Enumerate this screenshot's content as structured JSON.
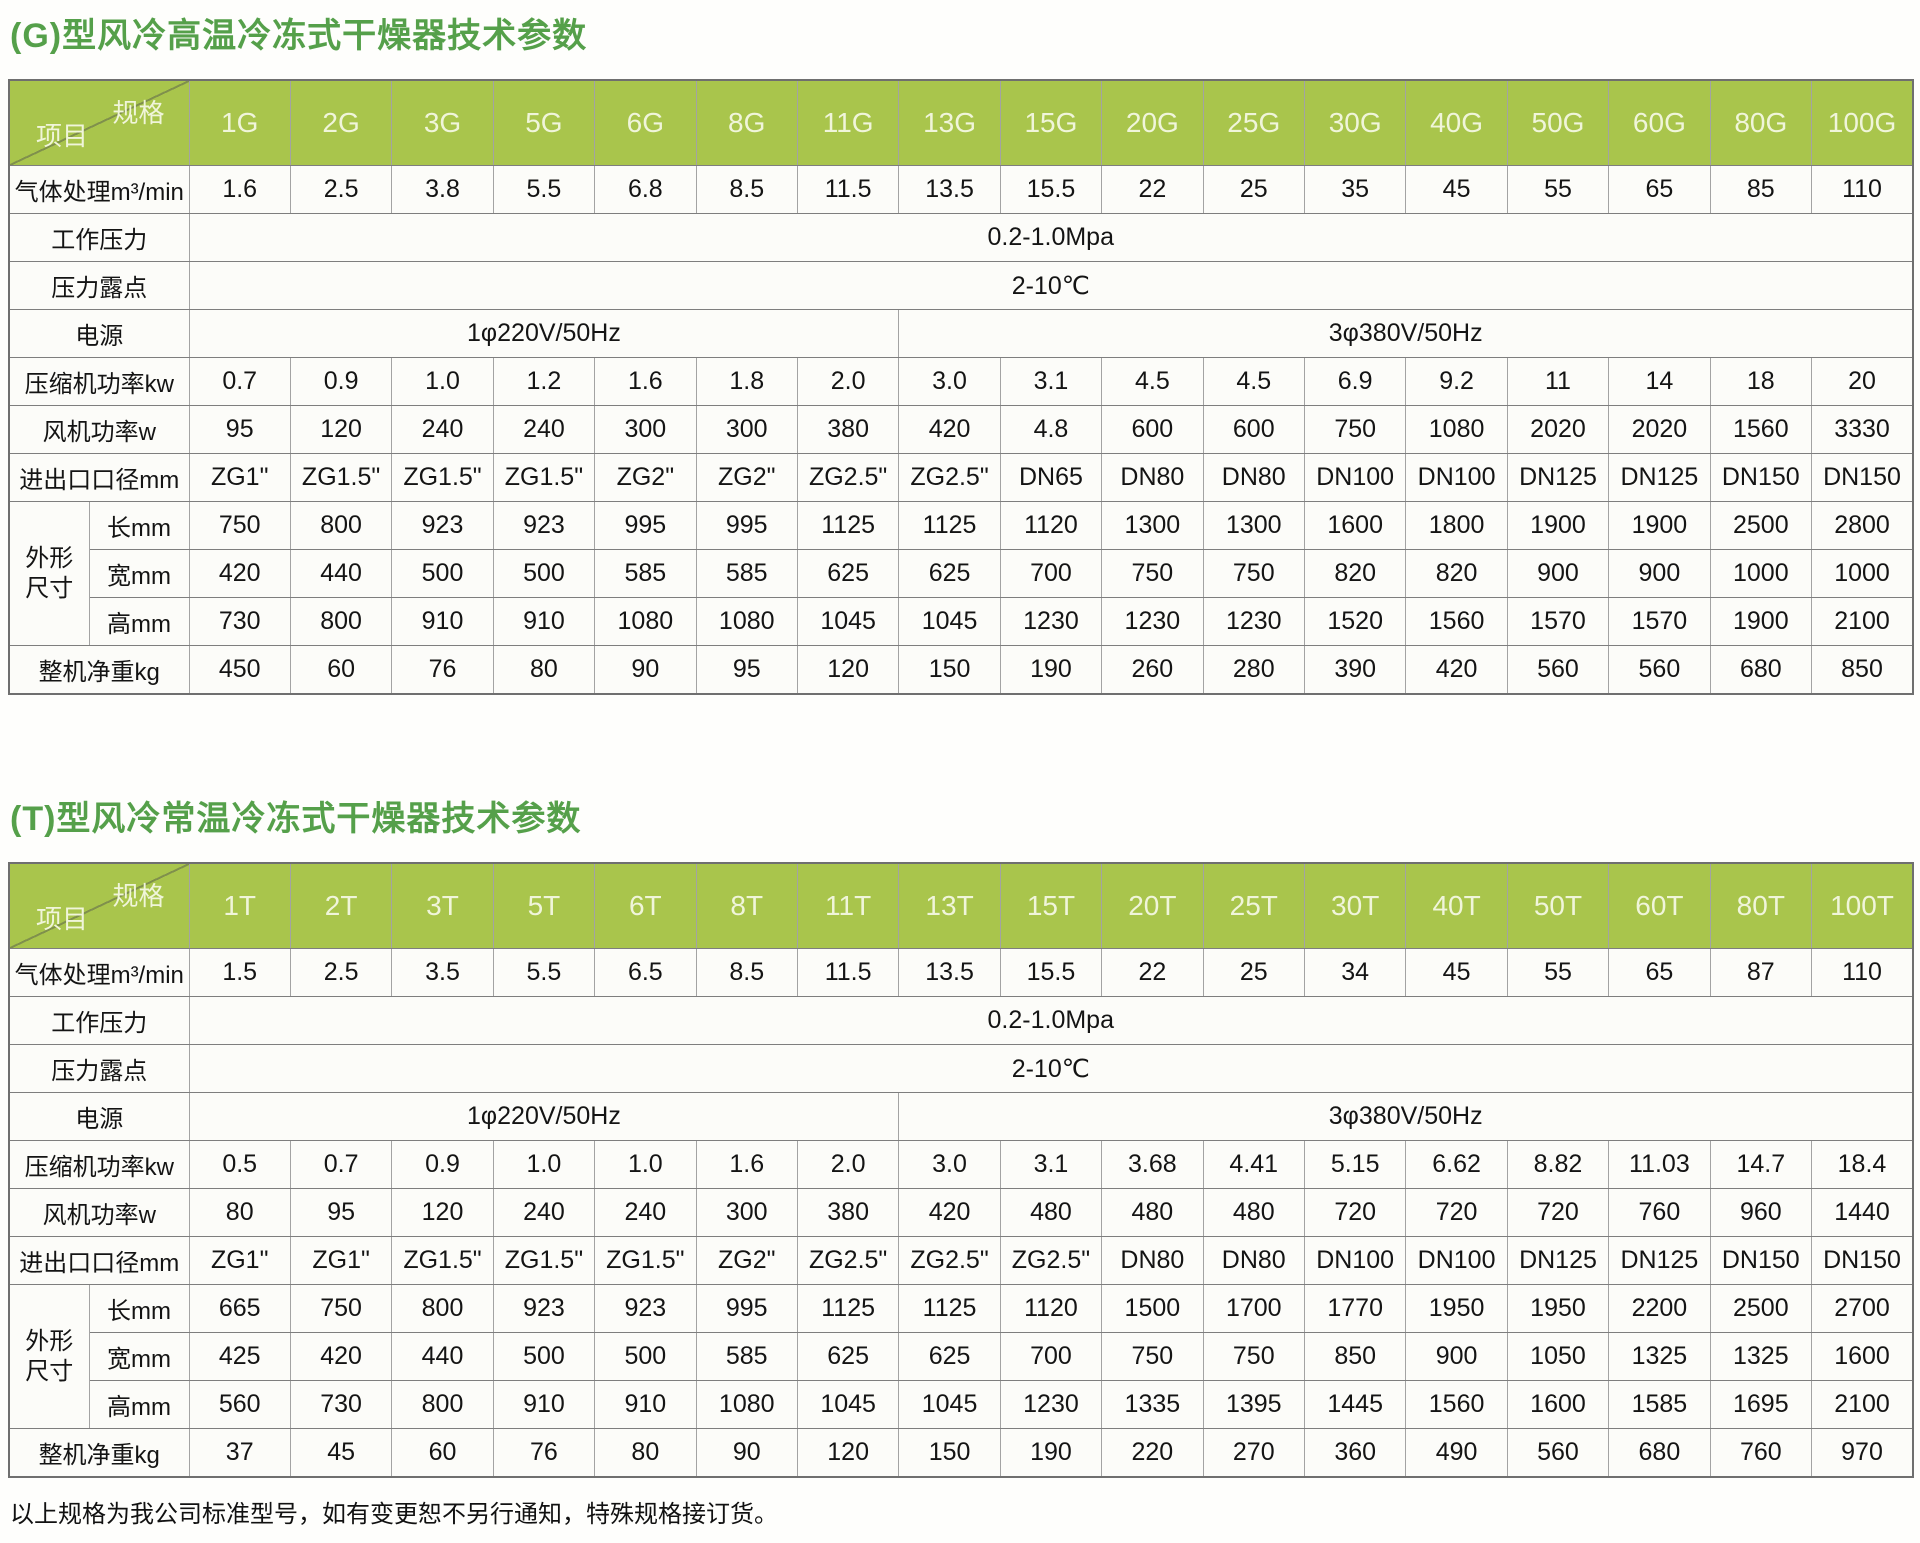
{
  "page": {
    "footer_note": "以上规格为我公司标准型号，如有变更恕不另行通知，特殊规格接订货。"
  },
  "colors": {
    "title": "#55a04a",
    "header_bg": "#a9c54c",
    "header_text": "#f0f5da"
  },
  "corner": {
    "top_right": "规格",
    "bottom_left": "项目"
  },
  "tables": [
    {
      "id": "g",
      "title": "(G)型风冷高温冷冻式干燥器技术参数",
      "models": [
        "1G",
        "2G",
        "3G",
        "5G",
        "6G",
        "8G",
        "11G",
        "13G",
        "15G",
        "20G",
        "25G",
        "30G",
        "40G",
        "50G",
        "60G",
        "80G",
        "100G"
      ],
      "rows": [
        {
          "type": "values",
          "label": "气体处理m³/min",
          "values": [
            "1.6",
            "2.5",
            "3.8",
            "5.5",
            "6.8",
            "8.5",
            "11.5",
            "13.5",
            "15.5",
            "22",
            "25",
            "35",
            "45",
            "55",
            "65",
            "85",
            "110"
          ]
        },
        {
          "type": "span",
          "label": "工作压力",
          "value": "0.2-1.0Mpa"
        },
        {
          "type": "span",
          "label": "压力露点",
          "value": "2-10℃"
        },
        {
          "type": "split",
          "label": "电源",
          "cells": [
            {
              "value": "1φ220V/50Hz",
              "span": 7
            },
            {
              "value": "3φ380V/50Hz",
              "span": 10
            }
          ]
        },
        {
          "type": "values",
          "label": "压缩机功率kw",
          "values": [
            "0.7",
            "0.9",
            "1.0",
            "1.2",
            "1.6",
            "1.8",
            "2.0",
            "3.0",
            "3.1",
            "4.5",
            "4.5",
            "6.9",
            "9.2",
            "11",
            "14",
            "18",
            "20"
          ]
        },
        {
          "type": "values",
          "label": "风机功率w",
          "values": [
            "95",
            "120",
            "240",
            "240",
            "300",
            "300",
            "380",
            "420",
            "4.8",
            "600",
            "600",
            "750",
            "1080",
            "2020",
            "2020",
            "1560",
            "3330"
          ]
        },
        {
          "type": "values",
          "label": "进出口口径mm",
          "values": [
            "ZG1\"",
            "ZG1.5\"",
            "ZG1.5\"",
            "ZG1.5\"",
            "ZG2\"",
            "ZG2\"",
            "ZG2.5\"",
            "ZG2.5\"",
            "DN65",
            "DN80",
            "DN80",
            "DN100",
            "DN100",
            "DN125",
            "DN125",
            "DN150",
            "DN150"
          ]
        },
        {
          "type": "group",
          "label": "外形尺寸",
          "sub_rows": [
            {
              "label": "长mm",
              "values": [
                "750",
                "800",
                "923",
                "923",
                "995",
                "995",
                "1125",
                "1125",
                "1120",
                "1300",
                "1300",
                "1600",
                "1800",
                "1900",
                "1900",
                "2500",
                "2800"
              ]
            },
            {
              "label": "宽mm",
              "values": [
                "420",
                "440",
                "500",
                "500",
                "585",
                "585",
                "625",
                "625",
                "700",
                "750",
                "750",
                "820",
                "820",
                "900",
                "900",
                "1000",
                "1000"
              ]
            },
            {
              "label": "高mm",
              "values": [
                "730",
                "800",
                "910",
                "910",
                "1080",
                "1080",
                "1045",
                "1045",
                "1230",
                "1230",
                "1230",
                "1520",
                "1560",
                "1570",
                "1570",
                "1900",
                "2100"
              ]
            }
          ]
        },
        {
          "type": "values",
          "label": "整机净重kg",
          "values": [
            "450",
            "60",
            "76",
            "80",
            "90",
            "95",
            "120",
            "150",
            "190",
            "260",
            "280",
            "390",
            "420",
            "560",
            "560",
            "680",
            "850"
          ]
        }
      ]
    },
    {
      "id": "t",
      "title": "(T)型风冷常温冷冻式干燥器技术参数",
      "models": [
        "1T",
        "2T",
        "3T",
        "5T",
        "6T",
        "8T",
        "11T",
        "13T",
        "15T",
        "20T",
        "25T",
        "30T",
        "40T",
        "50T",
        "60T",
        "80T",
        "100T"
      ],
      "rows": [
        {
          "type": "values",
          "label": "气体处理m³/min",
          "values": [
            "1.5",
            "2.5",
            "3.5",
            "5.5",
            "6.5",
            "8.5",
            "11.5",
            "13.5",
            "15.5",
            "22",
            "25",
            "34",
            "45",
            "55",
            "65",
            "87",
            "110"
          ]
        },
        {
          "type": "span",
          "label": "工作压力",
          "value": "0.2-1.0Mpa"
        },
        {
          "type": "span",
          "label": "压力露点",
          "value": "2-10℃"
        },
        {
          "type": "split",
          "label": "电源",
          "cells": [
            {
              "value": "1φ220V/50Hz",
              "span": 7
            },
            {
              "value": "3φ380V/50Hz",
              "span": 10
            }
          ]
        },
        {
          "type": "values",
          "label": "压缩机功率kw",
          "values": [
            "0.5",
            "0.7",
            "0.9",
            "1.0",
            "1.0",
            "1.6",
            "2.0",
            "3.0",
            "3.1",
            "3.68",
            "4.41",
            "5.15",
            "6.62",
            "8.82",
            "11.03",
            "14.7",
            "18.4"
          ]
        },
        {
          "type": "values",
          "label": "风机功率w",
          "values": [
            "80",
            "95",
            "120",
            "240",
            "240",
            "300",
            "380",
            "420",
            "480",
            "480",
            "480",
            "720",
            "720",
            "720",
            "760",
            "960",
            "1440"
          ]
        },
        {
          "type": "values",
          "label": "进出口口径mm",
          "values": [
            "ZG1\"",
            "ZG1\"",
            "ZG1.5\"",
            "ZG1.5\"",
            "ZG1.5\"",
            "ZG2\"",
            "ZG2.5\"",
            "ZG2.5\"",
            "ZG2.5\"",
            "DN80",
            "DN80",
            "DN100",
            "DN100",
            "DN125",
            "DN125",
            "DN150",
            "DN150"
          ]
        },
        {
          "type": "group",
          "label": "外形尺寸",
          "sub_rows": [
            {
              "label": "长mm",
              "values": [
                "665",
                "750",
                "800",
                "923",
                "923",
                "995",
                "1125",
                "1125",
                "1120",
                "1500",
                "1700",
                "1770",
                "1950",
                "1950",
                "2200",
                "2500",
                "2700"
              ]
            },
            {
              "label": "宽mm",
              "values": [
                "425",
                "420",
                "440",
                "500",
                "500",
                "585",
                "625",
                "625",
                "700",
                "750",
                "750",
                "850",
                "900",
                "1050",
                "1325",
                "1325",
                "1600"
              ]
            },
            {
              "label": "高mm",
              "values": [
                "560",
                "730",
                "800",
                "910",
                "910",
                "1080",
                "1045",
                "1045",
                "1230",
                "1335",
                "1395",
                "1445",
                "1560",
                "1600",
                "1585",
                "1695",
                "2100"
              ]
            }
          ]
        },
        {
          "type": "values",
          "label": "整机净重kg",
          "values": [
            "37",
            "45",
            "60",
            "76",
            "80",
            "90",
            "120",
            "150",
            "190",
            "220",
            "270",
            "360",
            "490",
            "560",
            "680",
            "760",
            "970"
          ]
        }
      ]
    }
  ]
}
